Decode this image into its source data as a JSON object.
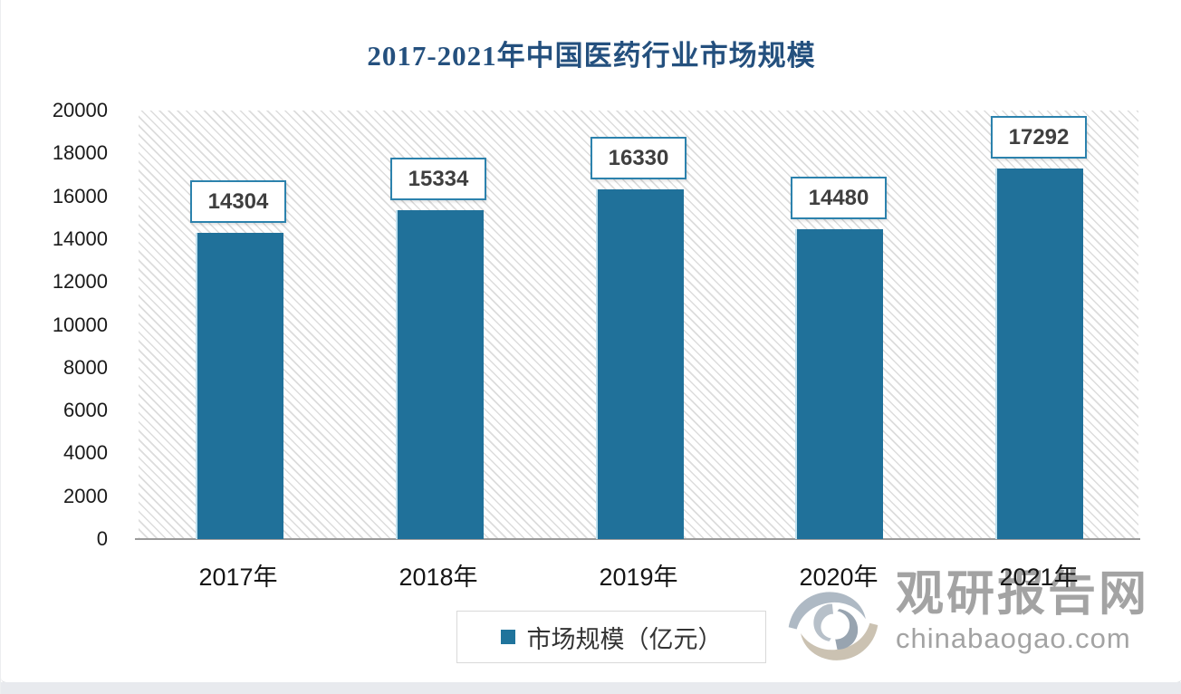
{
  "title": "2017-2021年中国医药行业市场规模",
  "chart_data": {
    "type": "bar",
    "categories": [
      "2017年",
      "2018年",
      "2019年",
      "2020年",
      "2021年"
    ],
    "values": [
      14304,
      15334,
      16330,
      14480,
      17292
    ],
    "series_name": "市场规模（亿元）",
    "title": "2017-2021年中国医药行业市场规模",
    "xlabel": "",
    "ylabel": "",
    "ylim": [
      0,
      20000
    ],
    "ytick_step": 2000,
    "grid": false,
    "legend_position": "bottom",
    "bar_color": "#20719A",
    "background_pattern": "diagonal-hatch"
  },
  "legend": {
    "label": "市场规模（亿元）",
    "marker_color": "#20749C"
  },
  "watermark": {
    "site_name": "观研报告网",
    "site_url": "chinabaogao.com",
    "logo": "swirl-logo"
  },
  "colors": {
    "title": "#24507E",
    "bar": "#20719A",
    "label_border": "#2C82AD",
    "axis_line": "#9B9B9B",
    "text": "#3F3F3F",
    "watermark": "#A3A3A3",
    "hatch": "#DCDCDC"
  }
}
